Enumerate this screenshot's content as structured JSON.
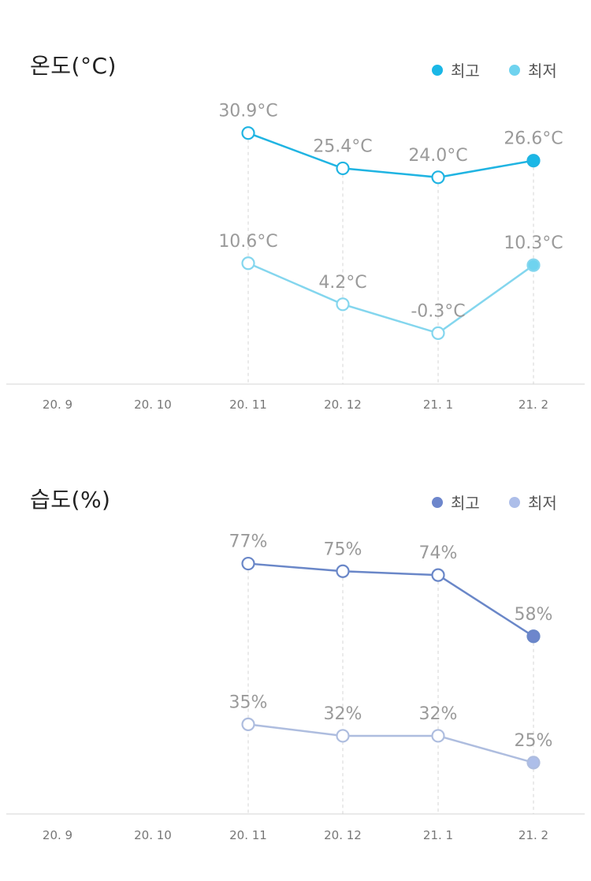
{
  "charts": [
    {
      "key": "temp",
      "title": "온도(°C)",
      "unit": "°C",
      "legend": [
        {
          "label": "최고",
          "color": "#1ab7e6"
        },
        {
          "label": "최저",
          "color": "#6fd3ef"
        }
      ],
      "colors": {
        "high_line": "#20b4e2",
        "low_line": "#84d6ee"
      }
    },
    {
      "key": "hum",
      "title": "습도(%)",
      "unit": "%",
      "legend": [
        {
          "label": "최고",
          "color": "#6d86cc"
        },
        {
          "label": "최저",
          "color": "#adbee9"
        }
      ],
      "colors": {
        "high_line": "#6a87c8",
        "low_line": "#aebddf"
      }
    }
  ],
  "chart_data": [
    {
      "type": "line",
      "title": "온도(°C)",
      "categories": [
        "20. 9",
        "20. 10",
        "20. 11",
        "20. 12",
        "21. 1",
        "21. 2"
      ],
      "series": [
        {
          "name": "최고",
          "values": [
            null,
            null,
            30.9,
            25.4,
            24.0,
            26.6
          ],
          "labels": [
            null,
            null,
            "30.9°C",
            "25.4°C",
            "24.0°C",
            "26.6°C"
          ]
        },
        {
          "name": "최저",
          "values": [
            null,
            null,
            10.6,
            4.2,
            -0.3,
            10.3
          ],
          "labels": [
            null,
            null,
            "10.6°C",
            "4.2°C",
            "-0.3°C",
            "10.3°C"
          ]
        }
      ],
      "ylim": [
        -8,
        33.2
      ],
      "grid": false
    },
    {
      "type": "line",
      "title": "습도(%)",
      "categories": [
        "20. 9",
        "20. 10",
        "20. 11",
        "20. 12",
        "21. 1",
        "21. 2"
      ],
      "series": [
        {
          "name": "최고",
          "values": [
            null,
            null,
            77,
            75,
            74,
            58
          ],
          "labels": [
            null,
            null,
            "77%",
            "75%",
            "74%",
            "58%"
          ]
        },
        {
          "name": "최저",
          "values": [
            null,
            null,
            35,
            32,
            32,
            25
          ],
          "labels": [
            null,
            null,
            "35%",
            "32%",
            "32%",
            "25%"
          ]
        }
      ],
      "ylim": [
        12,
        80
      ],
      "grid": false
    }
  ]
}
